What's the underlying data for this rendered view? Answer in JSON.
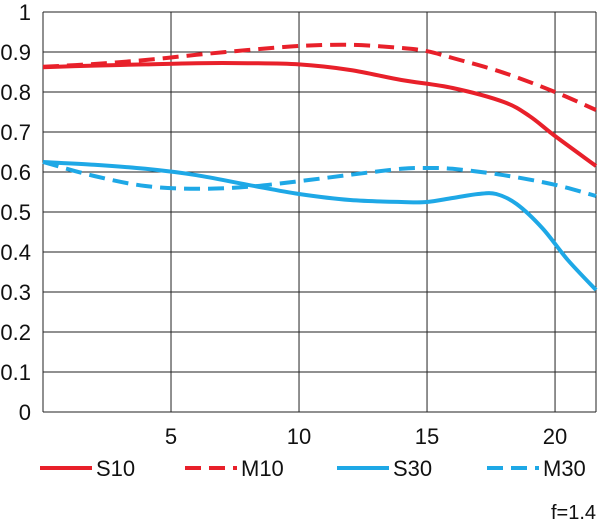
{
  "chart_data": {
    "type": "line",
    "title": "",
    "xlabel": "",
    "ylabel": "",
    "xlim": [
      0,
      21.6
    ],
    "ylim": [
      0,
      1
    ],
    "x_ticks": [
      5,
      10,
      15,
      20
    ],
    "y_ticks": [
      0,
      0.1,
      0.2,
      0.3,
      0.4,
      0.5,
      0.6,
      0.7,
      0.8,
      0.9,
      1
    ],
    "y_tick_labels": [
      "0",
      "0.1",
      "0.2",
      "0.3",
      "0.4",
      "0.5",
      "0.6",
      "0.7",
      "0.8",
      "0.9",
      "1"
    ],
    "grid": true,
    "legend_position": "bottom",
    "annotation": "f=1.4",
    "series": [
      {
        "name": "S10",
        "color": "#e8202a",
        "dash": "solid",
        "x": [
          0,
          2,
          4,
          6,
          8,
          10,
          12,
          14,
          16,
          18,
          19,
          20,
          21.6
        ],
        "y": [
          0.862,
          0.866,
          0.869,
          0.872,
          0.872,
          0.869,
          0.855,
          0.83,
          0.81,
          0.775,
          0.74,
          0.69,
          0.615
        ]
      },
      {
        "name": "M10",
        "color": "#e8202a",
        "dash": "dashed",
        "x": [
          0,
          2,
          4,
          6,
          8,
          10,
          12,
          14,
          15,
          16,
          18,
          20,
          21.6
        ],
        "y": [
          0.863,
          0.87,
          0.88,
          0.893,
          0.905,
          0.915,
          0.918,
          0.91,
          0.902,
          0.885,
          0.848,
          0.8,
          0.755
        ]
      },
      {
        "name": "S30",
        "color": "#1ea8e6",
        "dash": "solid",
        "x": [
          0,
          2,
          4,
          6,
          8,
          10,
          12,
          14,
          15,
          16,
          17,
          17.7,
          18.5,
          19.5,
          20.5,
          21.6
        ],
        "y": [
          0.625,
          0.618,
          0.608,
          0.592,
          0.568,
          0.545,
          0.53,
          0.525,
          0.525,
          0.535,
          0.545,
          0.545,
          0.52,
          0.46,
          0.38,
          0.305
        ]
      },
      {
        "name": "M30",
        "color": "#1ea8e6",
        "dash": "dashed",
        "x": [
          0,
          2,
          4,
          6,
          8,
          10,
          12,
          14,
          15,
          16,
          18,
          20,
          21.6
        ],
        "y": [
          0.625,
          0.59,
          0.565,
          0.558,
          0.563,
          0.577,
          0.593,
          0.608,
          0.61,
          0.608,
          0.592,
          0.568,
          0.54
        ]
      }
    ]
  }
}
